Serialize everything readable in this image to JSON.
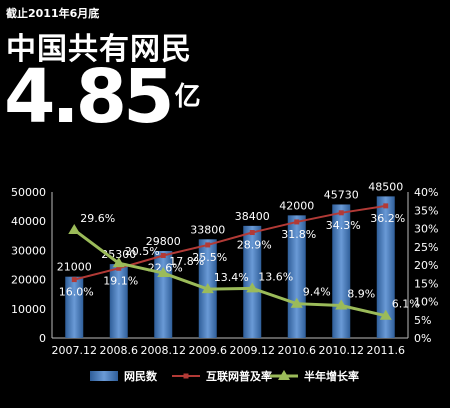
{
  "header": {
    "subtitle": "截止2011年6月底",
    "headline": "中国共有网民",
    "big_number": "4.85",
    "unit": "亿"
  },
  "chart_data": {
    "type": "bar",
    "categories": [
      "2007.12",
      "2008.6",
      "2008.12",
      "2009.6",
      "2009.12",
      "2010.6",
      "2010.12",
      "2011.6"
    ],
    "series": [
      {
        "name": "网民数",
        "type": "bar",
        "axis": "left",
        "color": "#4a7fc1",
        "values": [
          21000,
          25300,
          29800,
          33800,
          38400,
          42000,
          45730,
          48500
        ],
        "labels": [
          "21000",
          "25300",
          "29800",
          "33800",
          "38400",
          "42000",
          "45730",
          "48500"
        ]
      },
      {
        "name": "互联网普及率",
        "type": "line",
        "axis": "right",
        "color": "#b23a36",
        "values": [
          16.0,
          19.1,
          22.6,
          25.5,
          28.9,
          31.8,
          34.3,
          36.2
        ],
        "labels": [
          "16.0%",
          "19.1%",
          "22.6%",
          "25.5%",
          "28.9%",
          "31.8%",
          "34.3%",
          "36.2%"
        ]
      },
      {
        "name": "半年增长率",
        "type": "line",
        "axis": "right",
        "color": "#9bbb59",
        "values": [
          29.6,
          20.5,
          17.8,
          13.4,
          13.6,
          9.4,
          8.9,
          6.1
        ],
        "labels": [
          "29.6%",
          "20.5%",
          "17.8%",
          "13.4%",
          "13.6%",
          "9.4%",
          "8.9%",
          "6.1%"
        ]
      }
    ],
    "y_left": {
      "min": 0,
      "max": 50000,
      "ticks": [
        "0",
        "10000",
        "20000",
        "30000",
        "40000",
        "50000"
      ]
    },
    "y_right": {
      "min": 0,
      "max": 40,
      "ticks": [
        "0%",
        "5%",
        "10%",
        "15%",
        "20%",
        "25%",
        "30%",
        "35%",
        "40%"
      ]
    },
    "legend_position": "bottom",
    "grid": false
  }
}
